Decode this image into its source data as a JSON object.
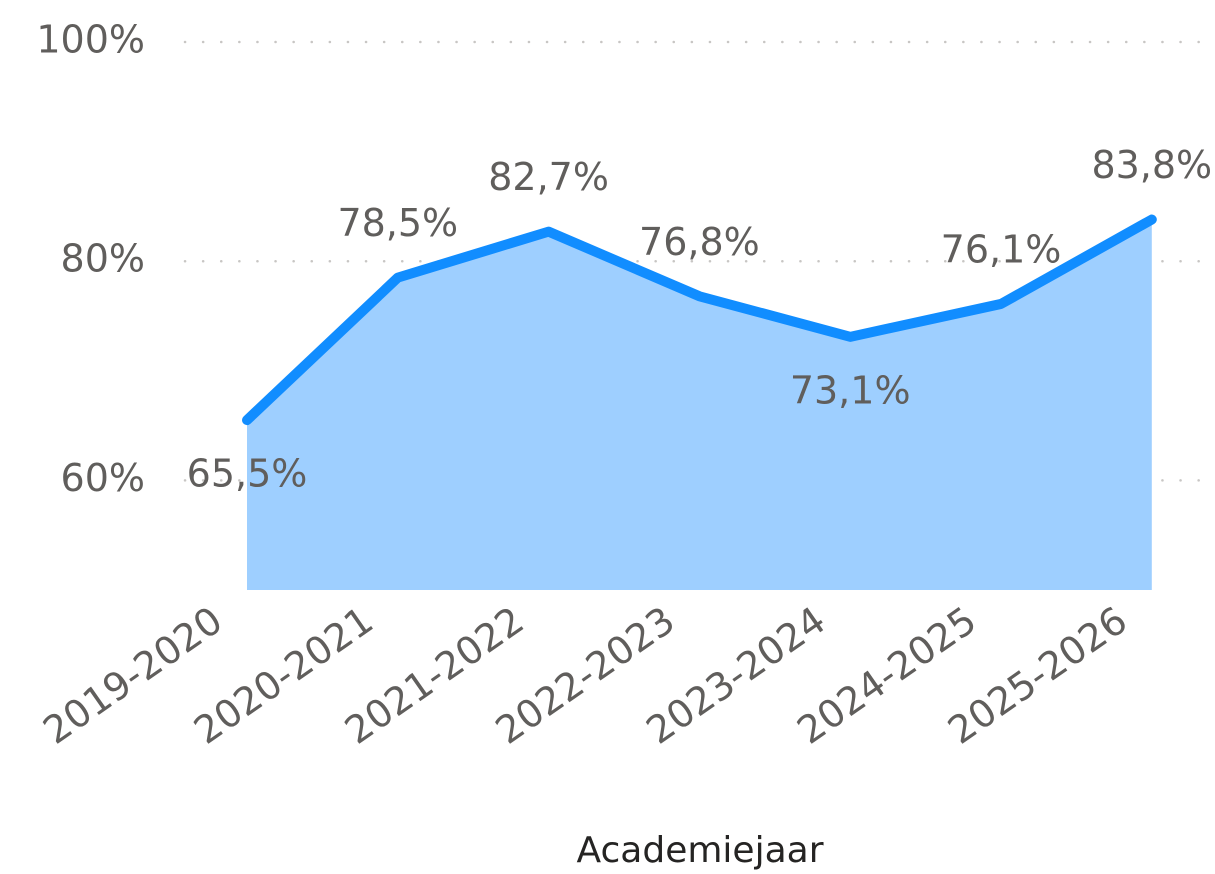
{
  "chart_data": {
    "type": "area",
    "x_label": "Academiejaar",
    "categories": [
      "2019-2020",
      "2020-2021",
      "2021-2022",
      "2022-2023",
      "2023-2024",
      "2024-2025",
      "2025-2026"
    ],
    "series": [
      {
        "color": "#118DFF",
        "fill": "#9ECFFF",
        "values": [
          65.5,
          78.5,
          82.7,
          76.8,
          73.1,
          76.1,
          83.8
        ],
        "value_labels": [
          "65,5%",
          "78,5%",
          "82,7%",
          "76,8%",
          "73,1%",
          "76,1%",
          "83,8%"
        ]
      }
    ],
    "ylim": [
      50,
      100
    ],
    "yticks": [
      {
        "value": 60,
        "label": "60%"
      },
      {
        "value": 80,
        "label": "80%"
      },
      {
        "value": 100,
        "label": "100%"
      }
    ],
    "grid": true
  }
}
